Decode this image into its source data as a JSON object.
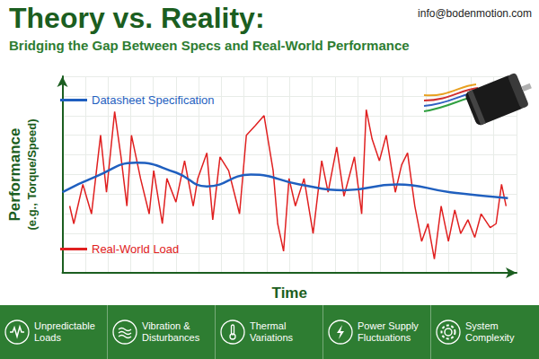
{
  "header": {
    "title": "Theory vs. Reality:",
    "subtitle": "Bridging the Gap Between Specs and Real-World Performance",
    "contact": "info@bodenmotion.com"
  },
  "chart_data": {
    "type": "line",
    "xlabel": "Time",
    "ylabel": "Performance (e.g., Torque/Speed)",
    "xlim": [
      0,
      100
    ],
    "ylim": [
      0,
      100
    ],
    "xticks": [
      0,
      5,
      10,
      15,
      20,
      25,
      30,
      35,
      40,
      45,
      50,
      55,
      60,
      65,
      70,
      75,
      80,
      85,
      90,
      95,
      100
    ],
    "yticks": [
      0,
      10,
      20,
      30,
      40,
      50,
      60,
      70,
      80,
      90,
      100
    ],
    "grid": true,
    "tick_labels": false,
    "legend": "left",
    "series": [
      {
        "name": "Datasheet Specification",
        "color": "#1f5fbf",
        "line_style": "smooth",
        "x": [
          0,
          7.4,
          16.2,
          25.0,
          31.8,
          41.5,
          52.2,
          62.0,
          73.7,
          85.4,
          98.1
        ],
        "values": [
          41,
          49,
          56,
          51,
          44,
          50,
          45,
          42,
          45,
          41,
          38
        ]
      },
      {
        "name": "Real-World Load",
        "color": "#e02020",
        "line_style": "solid",
        "x": [
          1.6,
          2.5,
          4.5,
          6.4,
          8.4,
          9.7,
          11.5,
          12.9,
          14.2,
          15.2,
          17.2,
          19.1,
          20.1,
          22.0,
          23.0,
          25.0,
          26.9,
          28.8,
          29.8,
          31.8,
          33.1,
          34.7,
          36.6,
          39.0,
          40.5,
          42.5,
          44.4,
          46.4,
          47.4,
          48.7,
          49.9,
          51.3,
          53.2,
          55.2,
          57.1,
          58.5,
          60.4,
          62.0,
          64.3,
          65.9,
          66.9,
          68.2,
          69.8,
          71.3,
          73.3,
          74.7,
          76.0,
          77.6,
          79.1,
          80.5,
          81.9,
          83.4,
          85.0,
          86.4,
          87.7,
          89.3,
          90.8,
          92.2,
          94.2,
          95.5,
          96.7,
          97.7
        ],
        "values": [
          34,
          25,
          45,
          30,
          70,
          41,
          82,
          59,
          34,
          70,
          48,
          30,
          52,
          25,
          48,
          36,
          57,
          34,
          48,
          61,
          27,
          59,
          52,
          30,
          70,
          75,
          80,
          52,
          25,
          11,
          48,
          34,
          48,
          20,
          57,
          41,
          64,
          39,
          59,
          30,
          83,
          68,
          57,
          70,
          41,
          55,
          61,
          34,
          16,
          25,
          7,
          34,
          16,
          32,
          20,
          27,
          18,
          30,
          23,
          25,
          45,
          34
        ]
      }
    ]
  },
  "footer": {
    "items": [
      "Unpredictable Loads",
      "Vibration & Disturbances",
      "Thermal Variations",
      "Power Supply Fluctuations",
      "System Complexity"
    ]
  }
}
